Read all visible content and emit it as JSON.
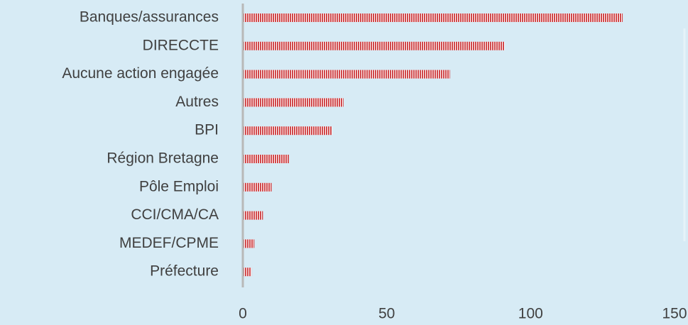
{
  "chart_data": {
    "type": "bar",
    "orientation": "horizontal",
    "categories": [
      "Banques/assurances",
      "DIRECCTE",
      "Aucune action engagée",
      "Autres",
      "BPI",
      "Région Bretagne",
      "Pôle Emploi",
      "CCI/CMA/CA",
      "MEDEF/CPME",
      "Préfecture"
    ],
    "values": [
      132,
      91,
      72,
      35,
      31,
      16,
      10,
      7,
      4,
      3
    ],
    "color": "#d0484b",
    "xlim": [
      0,
      150
    ],
    "xticks": [
      0,
      50,
      100,
      150
    ],
    "grid": false
  }
}
